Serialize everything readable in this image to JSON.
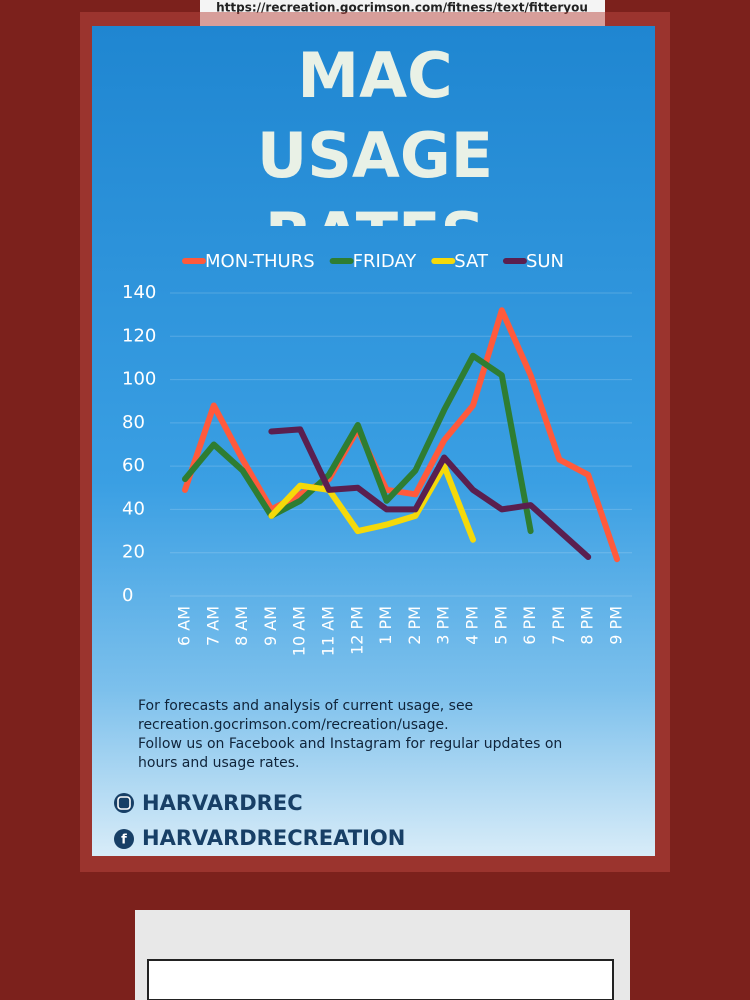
{
  "header_note": "https://recreation.gocrimson.com/fitness/text/fitteryou",
  "chart_data": {
    "type": "line",
    "title": "MAC USAGE RATES",
    "categories": [
      "6 AM",
      "7 AM",
      "8 AM",
      "9 AM",
      "10 AM",
      "11 AM",
      "12 PM",
      "1 PM",
      "2 PM",
      "3 PM",
      "4 PM",
      "5 PM",
      "6 PM",
      "7 PM",
      "8 PM",
      "9 PM"
    ],
    "series": [
      {
        "name": "MON-THURS",
        "color": "#ff5a3c",
        "values": [
          49,
          88,
          63,
          40,
          47,
          54,
          77,
          49,
          47,
          72,
          88,
          132,
          102,
          63,
          56,
          17
        ]
      },
      {
        "name": "FRIDAY",
        "color": "#2e7d32",
        "values": [
          54,
          70,
          58,
          37,
          44,
          56,
          79,
          44,
          58,
          86,
          111,
          102,
          30,
          null,
          null,
          null
        ]
      },
      {
        "name": "SAT",
        "color": "#f5d90a",
        "values": [
          null,
          null,
          null,
          37,
          51,
          49,
          30,
          33,
          37,
          60,
          26,
          null,
          null,
          null,
          null,
          null
        ]
      },
      {
        "name": "SUN",
        "color": "#5a1f4f",
        "values": [
          null,
          null,
          null,
          76,
          77,
          49,
          50,
          40,
          40,
          64,
          49,
          40,
          42,
          30,
          18,
          null
        ]
      }
    ],
    "ylim": [
      0,
      140
    ],
    "yticks": [
      0,
      20,
      40,
      60,
      80,
      100,
      120,
      140
    ],
    "grid": true
  },
  "footer": {
    "lines": [
      "For forecasts and analysis of current usage, see",
      "recreation.gocrimson.com/recreation/usage.",
      "Follow us on Facebook and Instagram for regular updates on",
      "hours and usage rates."
    ]
  },
  "social": {
    "instagram": "HARVARDREC",
    "facebook": "HARVARDRECREATION"
  }
}
